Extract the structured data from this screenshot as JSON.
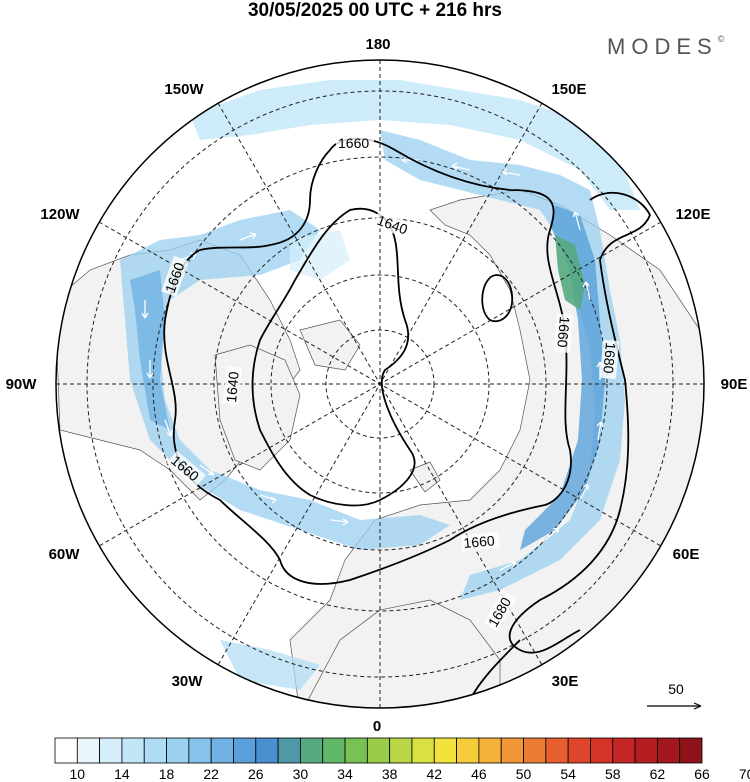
{
  "header": {
    "title": "30/05/2025  00 UTC  + 216 hrs",
    "brand": "MODES",
    "brand_mark": "©"
  },
  "map": {
    "projection": "north-polar-stereographic",
    "longitude_labels": [
      "180",
      "150E",
      "120E",
      "90E",
      "60E",
      "30E",
      "0",
      "30W",
      "60W",
      "90W",
      "120W",
      "150W"
    ],
    "contour_labels": [
      "1660",
      "1640",
      "1660",
      "1640",
      "1660",
      "1660",
      "1680",
      "1660",
      "1680"
    ],
    "reference_vector": "50"
  },
  "colorbar": {
    "tick_labels": [
      "10",
      "14",
      "18",
      "22",
      "26",
      "30",
      "34",
      "38",
      "42",
      "46",
      "50",
      "54",
      "58",
      "62",
      "66",
      "70"
    ],
    "colors": [
      "#ffffff",
      "#eaf6fc",
      "#d6eefa",
      "#c2e6f7",
      "#aedcf4",
      "#9ad0f0",
      "#86c2ea",
      "#70b2e3",
      "#5aa0da",
      "#4a8fd0",
      "#4f98a8",
      "#55aa80",
      "#62b866",
      "#78c254",
      "#98cc4a",
      "#b8d646",
      "#d8e042",
      "#f2e23e",
      "#f6cc3c",
      "#f4b23a",
      "#f09838",
      "#ec7c34",
      "#e66030",
      "#de462c",
      "#d23428",
      "#c42626",
      "#b41e22",
      "#a2181e",
      "#8e141a"
    ]
  }
}
